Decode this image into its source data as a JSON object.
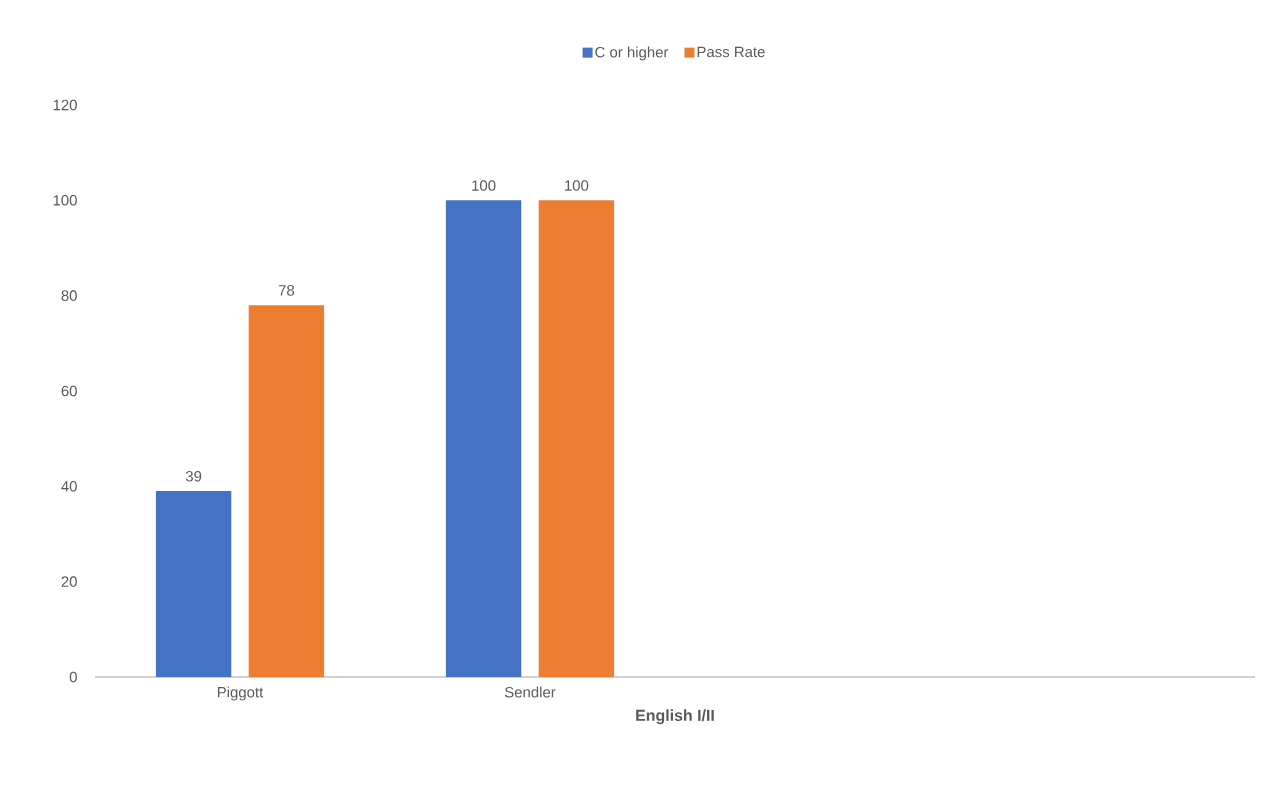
{
  "chart_data": {
    "type": "bar",
    "xlabel": "English I/II",
    "categories": [
      "Piggott",
      "Sendler",
      null,
      null
    ],
    "series": [
      {
        "name": "C or higher",
        "color": "#4472c4",
        "values": [
          39,
          100,
          null,
          null
        ]
      },
      {
        "name": "Pass Rate",
        "color": "#ed7d31",
        "values": [
          78,
          100,
          null,
          null
        ]
      }
    ],
    "ylim": [
      0,
      120
    ],
    "yticks": [
      0,
      20,
      40,
      60,
      80,
      100,
      120
    ],
    "grid": false,
    "legend": "top",
    "data_labels": true
  }
}
